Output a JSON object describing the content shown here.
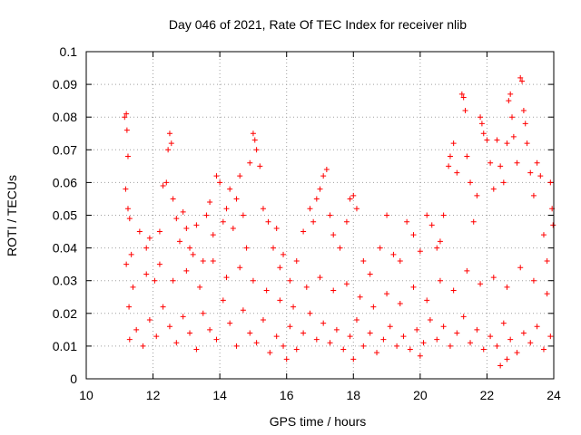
{
  "chart_data": {
    "type": "scatter",
    "title": "Day 046 of 2021, Rate Of TEC Index for receiver nlib",
    "xlabel": "GPS time / hours",
    "ylabel": "ROTI / TECUs",
    "xlim": [
      10,
      24
    ],
    "ylim": [
      0,
      0.1
    ],
    "grid": true,
    "marker": "plus",
    "color": "#ff0000",
    "x_ticks": [
      "10",
      "12",
      "14",
      "16",
      "18",
      "20",
      "22",
      "24"
    ],
    "y_ticks": [
      "0",
      "0.01",
      "0.02",
      "0.03",
      "0.04",
      "0.05",
      "0.06",
      "0.07",
      "0.08",
      "0.09",
      "0.1"
    ],
    "points": [
      [
        11.15,
        0.08
      ],
      [
        11.2,
        0.081
      ],
      [
        11.22,
        0.076
      ],
      [
        11.25,
        0.068
      ],
      [
        11.18,
        0.058
      ],
      [
        11.3,
        0.049
      ],
      [
        11.25,
        0.052
      ],
      [
        11.35,
        0.038
      ],
      [
        11.2,
        0.035
      ],
      [
        11.28,
        0.022
      ],
      [
        11.6,
        0.045
      ],
      [
        11.8,
        0.04
      ],
      [
        11.9,
        0.043
      ],
      [
        12.05,
        0.03
      ],
      [
        12.2,
        0.045
      ],
      [
        12.3,
        0.059
      ],
      [
        12.45,
        0.07
      ],
      [
        12.5,
        0.075
      ],
      [
        12.55,
        0.072
      ],
      [
        12.4,
        0.06
      ],
      [
        12.6,
        0.055
      ],
      [
        12.7,
        0.049
      ],
      [
        12.8,
        0.042
      ],
      [
        12.9,
        0.051
      ],
      [
        13.0,
        0.046
      ],
      [
        13.1,
        0.04
      ],
      [
        13.2,
        0.038
      ],
      [
        13.3,
        0.047
      ],
      [
        13.5,
        0.036
      ],
      [
        13.6,
        0.05
      ],
      [
        13.7,
        0.054
      ],
      [
        13.8,
        0.044
      ],
      [
        13.9,
        0.062
      ],
      [
        14.0,
        0.06
      ],
      [
        14.1,
        0.048
      ],
      [
        14.2,
        0.052
      ],
      [
        14.3,
        0.058
      ],
      [
        14.4,
        0.046
      ],
      [
        14.5,
        0.055
      ],
      [
        14.6,
        0.062
      ],
      [
        14.7,
        0.05
      ],
      [
        14.8,
        0.04
      ],
      [
        14.9,
        0.066
      ],
      [
        15.0,
        0.075
      ],
      [
        15.05,
        0.073
      ],
      [
        15.1,
        0.07
      ],
      [
        15.2,
        0.065
      ],
      [
        15.3,
        0.052
      ],
      [
        15.45,
        0.048
      ],
      [
        15.6,
        0.04
      ],
      [
        15.7,
        0.046
      ],
      [
        15.8,
        0.034
      ],
      [
        15.9,
        0.038
      ],
      [
        16.1,
        0.03
      ],
      [
        16.3,
        0.036
      ],
      [
        16.5,
        0.045
      ],
      [
        16.7,
        0.052
      ],
      [
        16.8,
        0.048
      ],
      [
        16.9,
        0.055
      ],
      [
        17.0,
        0.058
      ],
      [
        17.1,
        0.062
      ],
      [
        17.2,
        0.064
      ],
      [
        17.3,
        0.05
      ],
      [
        17.4,
        0.044
      ],
      [
        17.6,
        0.04
      ],
      [
        17.8,
        0.048
      ],
      [
        17.9,
        0.055
      ],
      [
        18.0,
        0.056
      ],
      [
        18.1,
        0.052
      ],
      [
        18.3,
        0.036
      ],
      [
        18.5,
        0.032
      ],
      [
        18.8,
        0.04
      ],
      [
        19.0,
        0.05
      ],
      [
        19.2,
        0.038
      ],
      [
        19.4,
        0.036
      ],
      [
        19.6,
        0.048
      ],
      [
        19.8,
        0.044
      ],
      [
        20.0,
        0.039
      ],
      [
        20.2,
        0.05
      ],
      [
        20.35,
        0.047
      ],
      [
        20.5,
        0.04
      ],
      [
        20.6,
        0.042
      ],
      [
        20.7,
        0.05
      ],
      [
        20.85,
        0.065
      ],
      [
        20.9,
        0.068
      ],
      [
        21.0,
        0.072
      ],
      [
        21.1,
        0.063
      ],
      [
        21.25,
        0.087
      ],
      [
        21.3,
        0.086
      ],
      [
        21.35,
        0.082
      ],
      [
        21.4,
        0.068
      ],
      [
        21.5,
        0.06
      ],
      [
        21.6,
        0.048
      ],
      [
        21.7,
        0.056
      ],
      [
        21.8,
        0.08
      ],
      [
        21.85,
        0.078
      ],
      [
        21.9,
        0.075
      ],
      [
        22.0,
        0.073
      ],
      [
        22.1,
        0.066
      ],
      [
        22.2,
        0.058
      ],
      [
        22.3,
        0.073
      ],
      [
        22.4,
        0.065
      ],
      [
        22.5,
        0.06
      ],
      [
        22.6,
        0.072
      ],
      [
        22.65,
        0.085
      ],
      [
        22.7,
        0.087
      ],
      [
        22.75,
        0.08
      ],
      [
        22.8,
        0.074
      ],
      [
        22.9,
        0.066
      ],
      [
        23.0,
        0.092
      ],
      [
        23.05,
        0.091
      ],
      [
        23.1,
        0.082
      ],
      [
        23.15,
        0.078
      ],
      [
        23.2,
        0.072
      ],
      [
        23.3,
        0.063
      ],
      [
        23.4,
        0.056
      ],
      [
        23.5,
        0.066
      ],
      [
        23.6,
        0.062
      ],
      [
        23.7,
        0.044
      ],
      [
        23.8,
        0.036
      ],
      [
        23.9,
        0.06
      ],
      [
        23.95,
        0.052
      ],
      [
        23.98,
        0.047
      ],
      [
        11.3,
        0.012
      ],
      [
        11.5,
        0.015
      ],
      [
        11.7,
        0.01
      ],
      [
        11.9,
        0.018
      ],
      [
        12.1,
        0.013
      ],
      [
        12.3,
        0.022
      ],
      [
        12.5,
        0.016
      ],
      [
        12.7,
        0.011
      ],
      [
        12.9,
        0.019
      ],
      [
        13.1,
        0.014
      ],
      [
        13.3,
        0.009
      ],
      [
        13.5,
        0.02
      ],
      [
        13.7,
        0.015
      ],
      [
        13.9,
        0.012
      ],
      [
        14.1,
        0.024
      ],
      [
        14.3,
        0.017
      ],
      [
        14.5,
        0.01
      ],
      [
        14.7,
        0.021
      ],
      [
        14.9,
        0.014
      ],
      [
        15.1,
        0.011
      ],
      [
        15.3,
        0.018
      ],
      [
        15.5,
        0.008
      ],
      [
        15.7,
        0.013
      ],
      [
        15.9,
        0.01
      ],
      [
        16.1,
        0.016
      ],
      [
        16.3,
        0.009
      ],
      [
        16.5,
        0.014
      ],
      [
        16.7,
        0.02
      ],
      [
        16.9,
        0.012
      ],
      [
        17.1,
        0.017
      ],
      [
        17.3,
        0.011
      ],
      [
        17.5,
        0.015
      ],
      [
        17.7,
        0.009
      ],
      [
        17.9,
        0.013
      ],
      [
        18.1,
        0.018
      ],
      [
        18.3,
        0.01
      ],
      [
        18.5,
        0.014
      ],
      [
        18.7,
        0.008
      ],
      [
        18.9,
        0.012
      ],
      [
        19.1,
        0.016
      ],
      [
        19.3,
        0.01
      ],
      [
        19.5,
        0.013
      ],
      [
        19.7,
        0.009
      ],
      [
        19.9,
        0.015
      ],
      [
        20.1,
        0.011
      ],
      [
        20.3,
        0.018
      ],
      [
        20.5,
        0.012
      ],
      [
        20.7,
        0.016
      ],
      [
        20.9,
        0.01
      ],
      [
        21.1,
        0.014
      ],
      [
        21.3,
        0.019
      ],
      [
        21.5,
        0.011
      ],
      [
        21.7,
        0.015
      ],
      [
        21.9,
        0.009
      ],
      [
        22.1,
        0.013
      ],
      [
        22.3,
        0.01
      ],
      [
        22.5,
        0.017
      ],
      [
        22.7,
        0.012
      ],
      [
        22.9,
        0.008
      ],
      [
        23.1,
        0.014
      ],
      [
        23.3,
        0.011
      ],
      [
        23.5,
        0.016
      ],
      [
        23.7,
        0.009
      ],
      [
        23.9,
        0.013
      ],
      [
        11.4,
        0.028
      ],
      [
        11.8,
        0.032
      ],
      [
        12.2,
        0.035
      ],
      [
        12.6,
        0.03
      ],
      [
        13.0,
        0.033
      ],
      [
        13.4,
        0.028
      ],
      [
        13.8,
        0.036
      ],
      [
        14.2,
        0.031
      ],
      [
        14.6,
        0.034
      ],
      [
        15.0,
        0.03
      ],
      [
        15.4,
        0.027
      ],
      [
        15.8,
        0.024
      ],
      [
        16.2,
        0.022
      ],
      [
        16.6,
        0.028
      ],
      [
        17.0,
        0.031
      ],
      [
        17.4,
        0.027
      ],
      [
        17.8,
        0.029
      ],
      [
        18.2,
        0.025
      ],
      [
        18.6,
        0.022
      ],
      [
        19.0,
        0.026
      ],
      [
        19.4,
        0.023
      ],
      [
        19.8,
        0.028
      ],
      [
        20.2,
        0.024
      ],
      [
        20.6,
        0.03
      ],
      [
        21.0,
        0.027
      ],
      [
        21.4,
        0.033
      ],
      [
        21.8,
        0.029
      ],
      [
        22.2,
        0.031
      ],
      [
        22.6,
        0.028
      ],
      [
        23.0,
        0.034
      ],
      [
        23.4,
        0.03
      ],
      [
        23.8,
        0.026
      ],
      [
        22.4,
        0.004
      ],
      [
        22.6,
        0.006
      ],
      [
        16.0,
        0.006
      ],
      [
        18.0,
        0.006
      ],
      [
        20.0,
        0.007
      ]
    ]
  }
}
